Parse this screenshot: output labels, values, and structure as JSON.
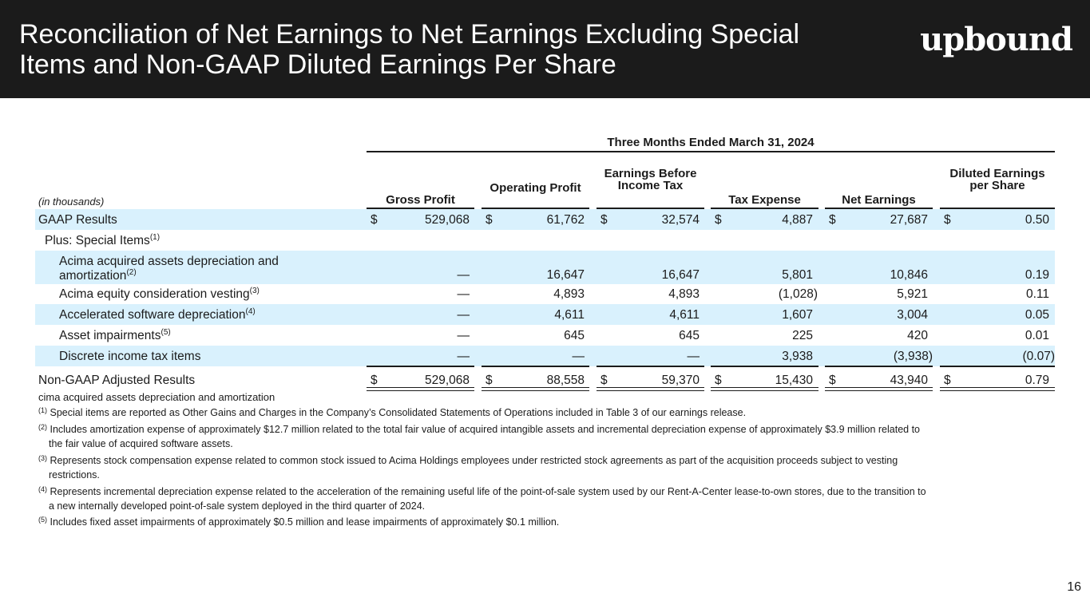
{
  "header": {
    "title": "Reconciliation of Net Earnings to Net Earnings Excluding Special Items and Non-GAAP Diluted Earnings Per Share",
    "logo_text": "upbound",
    "background": "#1b1b1b"
  },
  "table": {
    "period": "Three Months Ended March 31, 2024",
    "units": "(in thousands)",
    "columns": [
      "Gross Profit",
      "Operating Profit",
      "Earnings Before Income Tax",
      "Tax Expense",
      "Net Earnings",
      "Diluted Earnings per Share"
    ],
    "currency": "$",
    "rows": [
      {
        "label": "GAAP Results",
        "values": [
          "529,068",
          "61,762",
          "32,574",
          "4,887",
          "27,687",
          "0.50"
        ]
      },
      {
        "label": "Plus: Special Items",
        "sup": "(1)",
        "values": []
      },
      {
        "label": "Acima acquired assets depreciation and",
        "label2": "amortization",
        "sup": "(2)",
        "values": [
          "—",
          "16,647",
          "16,647",
          "5,801",
          "10,846",
          "0.19"
        ]
      },
      {
        "label": "Acima equity consideration vesting",
        "sup": "(3)",
        "values": [
          "—",
          "4,893",
          "4,893",
          "(1,028)",
          "5,921",
          "0.11"
        ]
      },
      {
        "label": "Accelerated software depreciation",
        "sup": "(4)",
        "values": [
          "—",
          "4,611",
          "4,611",
          "1,607",
          "3,004",
          "0.05"
        ]
      },
      {
        "label": "Asset impairments",
        "sup": "(5)",
        "values": [
          "—",
          "645",
          "645",
          "225",
          "420",
          "0.01"
        ]
      },
      {
        "label": "Discrete income tax items",
        "values": [
          "—",
          "—",
          "—",
          "3,938",
          "(3,938)",
          "(0.07)"
        ]
      },
      {
        "label": "Non-GAAP Adjusted Results",
        "values": [
          "529,068",
          "88,558",
          "59,370",
          "15,430",
          "43,940",
          "0.79"
        ]
      }
    ],
    "shade_color": "#d9f1fd"
  },
  "stray_text": "cima acquired assets depreciation and amortization",
  "footnotes": [
    {
      "mark": "(1)",
      "text": "Special items are reported as Other Gains and Charges in the Company’s Consolidated Statements of Operations included in Table 3 of our earnings release.",
      "cont": ""
    },
    {
      "mark": "(2)",
      "text": "Includes amortization expense of approximately $12.7 million related to the total fair value of acquired intangible assets and incremental depreciation expense of approximately $3.9 million related to",
      "cont": "the fair value of acquired software assets."
    },
    {
      "mark": "(3)",
      "text": "Represents stock compensation expense related to common stock issued to Acima Holdings employees under restricted stock agreements as part of the acquisition proceeds subject to vesting",
      "cont": "restrictions."
    },
    {
      "mark": "(4)",
      "text": "Represents incremental depreciation expense related to the acceleration of the remaining useful life of the point-of-sale system used by our Rent-A-Center lease-to-own stores, due to the transition to",
      "cont": "a new internally developed point-of-sale system deployed in the third quarter of 2024."
    },
    {
      "mark": "(5)",
      "text": "Includes fixed asset impairments of approximately $0.5 million and lease impairments of approximately $0.1 million.",
      "cont": ""
    }
  ],
  "page_number": "16"
}
